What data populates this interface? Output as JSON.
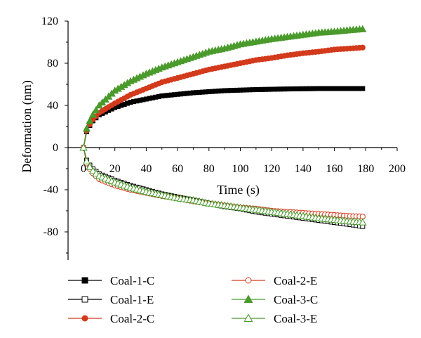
{
  "chart_data": {
    "type": "scatter",
    "title": "",
    "xlabel": "Time (s)",
    "ylabel": "Deformation (nm)",
    "xlim": [
      -10,
      200
    ],
    "ylim": [
      -100,
      120
    ],
    "xticks": [
      "0",
      "20",
      "40",
      "60",
      "80",
      "100",
      "120",
      "140",
      "160",
      "180",
      "200"
    ],
    "yticks": [
      "120",
      "80",
      "40",
      "0",
      "-40",
      "-80"
    ],
    "legend_position": "bottom",
    "grid": false,
    "series": [
      {
        "name": "Coal-1-C",
        "color": "#000000",
        "marker": "square",
        "filled": true,
        "x": [
          0,
          2,
          5,
          10,
          20,
          30,
          40,
          50,
          60,
          70,
          80,
          90,
          100,
          110,
          120,
          130,
          140,
          150,
          160,
          170,
          179
        ],
        "y": [
          0,
          15,
          24,
          31,
          38,
          43,
          46,
          49,
          50.5,
          52,
          53,
          54,
          54.5,
          55,
          55.3,
          55.6,
          55.8,
          56,
          56,
          56,
          56
        ]
      },
      {
        "name": "Coal-1-E",
        "color": "#000000",
        "marker": "square",
        "filled": false,
        "x": [
          0,
          2,
          5,
          10,
          20,
          30,
          40,
          50,
          60,
          70,
          80,
          90,
          100,
          110,
          120,
          130,
          140,
          150,
          160,
          170,
          179
        ],
        "y": [
          0,
          -12,
          -19,
          -25,
          -31,
          -36,
          -40,
          -44,
          -47,
          -50,
          -53,
          -56,
          -58,
          -61,
          -63,
          -65,
          -67,
          -69,
          -71,
          -73,
          -75
        ]
      },
      {
        "name": "Coal-2-C",
        "color": "#d33a1c",
        "marker": "circle",
        "filled": true,
        "x": [
          0,
          2,
          5,
          10,
          20,
          30,
          40,
          50,
          60,
          70,
          80,
          90,
          100,
          110,
          120,
          130,
          140,
          150,
          160,
          170,
          179
        ],
        "y": [
          0,
          16,
          25,
          33,
          42,
          50,
          56,
          62,
          66,
          70,
          74,
          77,
          80,
          83,
          85,
          87.5,
          89.5,
          91,
          93,
          94,
          95
        ]
      },
      {
        "name": "Coal-2-E",
        "color": "#d33a1c",
        "marker": "circle",
        "filled": false,
        "x": [
          0,
          2,
          5,
          10,
          20,
          30,
          40,
          50,
          60,
          70,
          80,
          90,
          100,
          110,
          120,
          130,
          140,
          150,
          160,
          170,
          179
        ],
        "y": [
          0,
          -15,
          -23,
          -30,
          -36,
          -40,
          -43,
          -46,
          -48,
          -51,
          -53,
          -55,
          -57,
          -58,
          -60,
          -61,
          -62,
          -63,
          -64,
          -65,
          -65.5
        ]
      },
      {
        "name": "Coal-3-C",
        "color": "#4a9a2c",
        "marker": "triangle",
        "filled": true,
        "x": [
          0,
          2,
          5,
          10,
          20,
          30,
          40,
          50,
          60,
          70,
          80,
          90,
          100,
          110,
          120,
          130,
          140,
          150,
          160,
          170,
          179
        ],
        "y": [
          0,
          18,
          29,
          40,
          54,
          63,
          70,
          76,
          81,
          86,
          91,
          94,
          98,
          100.5,
          103,
          105,
          107,
          109,
          110,
          111.5,
          112.5
        ]
      },
      {
        "name": "Coal-3-E",
        "color": "#4a9a2c",
        "marker": "triangle",
        "filled": false,
        "x": [
          0,
          2,
          5,
          10,
          20,
          30,
          40,
          50,
          60,
          70,
          80,
          90,
          100,
          110,
          120,
          130,
          140,
          150,
          160,
          170,
          179
        ],
        "y": [
          0,
          -13,
          -21,
          -27,
          -33,
          -38,
          -42,
          -45,
          -48,
          -50,
          -53,
          -55,
          -57,
          -59,
          -61,
          -63,
          -65,
          -67,
          -68.5,
          -70,
          -71
        ]
      }
    ]
  }
}
